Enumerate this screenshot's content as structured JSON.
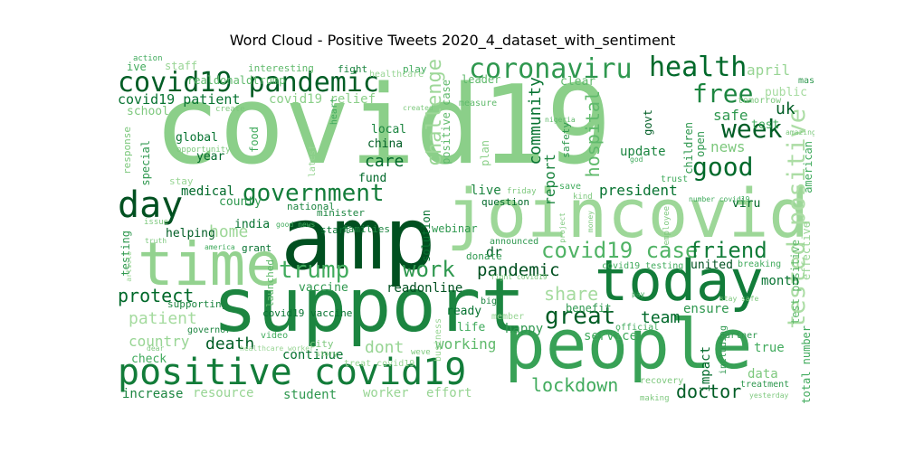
{
  "chart_data": {
    "type": "wordcloud",
    "title": "Word Cloud - Positive Tweets 2020_4_dataset_with_sentiment",
    "colormap": "Greens",
    "words": [
      {
        "text": "covid19",
        "weight": 1.0,
        "shade": 0.25
      },
      {
        "text": "amp",
        "weight": 0.62,
        "shade": 0.95
      },
      {
        "text": "joincovid",
        "weight": 0.52,
        "shade": 0.18
      },
      {
        "text": "support",
        "weight": 0.55,
        "shade": 0.7
      },
      {
        "text": "people",
        "weight": 0.5,
        "shade": 0.55
      },
      {
        "text": "time",
        "weight": 0.42,
        "shade": 0.22
      },
      {
        "text": "today",
        "weight": 0.48,
        "shade": 0.75
      },
      {
        "text": "positive covid19",
        "weight": 0.28,
        "shade": 0.75
      },
      {
        "text": "coronaviru",
        "weight": 0.2,
        "shade": 0.6
      },
      {
        "text": "health",
        "weight": 0.2,
        "shade": 0.85
      },
      {
        "text": "covid19 pandemic",
        "weight": 0.21,
        "shade": 0.9
      },
      {
        "text": "day",
        "weight": 0.28,
        "shade": 0.95
      },
      {
        "text": "government",
        "weight": 0.2,
        "shade": 0.75
      },
      {
        "text": "tested positive",
        "weight": 0.2,
        "shade": 0.12
      },
      {
        "text": "good",
        "weight": 0.18,
        "shade": 0.85
      },
      {
        "text": "week",
        "weight": 0.17,
        "shade": 0.9
      },
      {
        "text": "free",
        "weight": 0.17,
        "shade": 0.7
      },
      {
        "text": "trump",
        "weight": 0.16,
        "shade": 0.5
      },
      {
        "text": "work",
        "weight": 0.15,
        "shade": 0.6
      },
      {
        "text": "great",
        "weight": 0.16,
        "shade": 0.9
      },
      {
        "text": "covid19 case",
        "weight": 0.14,
        "shade": 0.45
      },
      {
        "text": "friend",
        "weight": 0.14,
        "shade": 0.75
      },
      {
        "text": "pandemic",
        "weight": 0.13,
        "shade": 0.95
      },
      {
        "text": "protect",
        "weight": 0.12,
        "shade": 0.85
      },
      {
        "text": "lockdown",
        "weight": 0.12,
        "shade": 0.5
      },
      {
        "text": "doctor",
        "weight": 0.12,
        "shade": 0.9
      },
      {
        "text": "challenge",
        "weight": 0.12,
        "shade": 0.18
      },
      {
        "text": "hospital",
        "weight": 0.12,
        "shade": 0.4
      },
      {
        "text": "community",
        "weight": 0.1,
        "shade": 0.8
      },
      {
        "text": "care",
        "weight": 0.1,
        "shade": 0.85
      },
      {
        "text": "death",
        "weight": 0.11,
        "shade": 0.9
      },
      {
        "text": "share",
        "weight": 0.12,
        "shade": 0.15
      },
      {
        "text": "home",
        "weight": 0.11,
        "shade": 0.18
      },
      {
        "text": "patient",
        "weight": 0.1,
        "shade": 0.15
      },
      {
        "text": "dont",
        "weight": 0.1,
        "shade": 0.2
      },
      {
        "text": "country",
        "weight": 0.09,
        "shade": 0.2
      },
      {
        "text": "team",
        "weight": 0.1,
        "shade": 0.85
      },
      {
        "text": "president",
        "weight": 0.09,
        "shade": 0.8
      },
      {
        "text": "working",
        "weight": 0.08,
        "shade": 0.4
      },
      {
        "text": "continue",
        "weight": 0.08,
        "shade": 0.8
      },
      {
        "text": "news",
        "weight": 0.08,
        "shade": 0.3
      },
      {
        "text": "safe",
        "weight": 0.08,
        "shade": 0.6
      },
      {
        "text": "uk",
        "weight": 0.08,
        "shade": 0.9
      },
      {
        "text": "april",
        "weight": 0.08,
        "shade": 0.2
      },
      {
        "text": "increase",
        "weight": 0.07,
        "shade": 0.7
      },
      {
        "text": "student",
        "weight": 0.07,
        "shade": 0.6
      },
      {
        "text": "resource",
        "weight": 0.07,
        "shade": 0.2
      },
      {
        "text": "worker",
        "weight": 0.07,
        "shade": 0.2
      },
      {
        "text": "effort",
        "weight": 0.07,
        "shade": 0.2
      },
      {
        "text": "vaccine",
        "weight": 0.06,
        "shade": 0.6
      },
      {
        "text": "readonline",
        "weight": 0.06,
        "shade": 0.95
      },
      {
        "text": "live",
        "weight": 0.07,
        "shade": 0.7
      },
      {
        "text": "report",
        "weight": 0.07,
        "shade": 0.7
      },
      {
        "text": "update",
        "weight": 0.06,
        "shade": 0.7
      },
      {
        "text": "medical",
        "weight": 0.06,
        "shade": 0.85
      },
      {
        "text": "covid19 patient",
        "weight": 0.07,
        "shade": 0.8
      },
      {
        "text": "covid19 relief",
        "weight": 0.07,
        "shade": 0.25
      },
      {
        "text": "realdonaldtrump",
        "weight": 0.06,
        "shade": 0.4
      },
      {
        "text": "total number",
        "weight": 0.05,
        "shade": 0.5
      },
      {
        "text": "test positive",
        "weight": 0.05,
        "shade": 0.4
      },
      {
        "text": "american",
        "weight": 0.05,
        "shade": 0.5
      },
      {
        "text": "effective",
        "weight": 0.05,
        "shade": 0.2
      },
      {
        "text": "ensure",
        "weight": 0.06,
        "shade": 0.6
      },
      {
        "text": "month",
        "weight": 0.06,
        "shade": 0.8
      },
      {
        "text": "benefit",
        "weight": 0.06,
        "shade": 0.6
      },
      {
        "text": "happy",
        "weight": 0.06,
        "shade": 0.6
      },
      {
        "text": "ready",
        "weight": 0.05,
        "shade": 0.8
      },
      {
        "text": "life",
        "weight": 0.06,
        "shade": 0.5
      },
      {
        "text": "service",
        "weight": 0.06,
        "shade": 0.5
      },
      {
        "text": "impact",
        "weight": 0.06,
        "shade": 0.85
      },
      {
        "text": "true",
        "weight": 0.05,
        "shade": 0.5
      },
      {
        "text": "data",
        "weight": 0.05,
        "shade": 0.3
      },
      {
        "text": "united",
        "weight": 0.05,
        "shade": 0.95
      },
      {
        "text": "global",
        "weight": 0.05,
        "shade": 0.8
      },
      {
        "text": "year",
        "weight": 0.05,
        "shade": 0.85
      },
      {
        "text": "china",
        "weight": 0.05,
        "shade": 0.9
      },
      {
        "text": "local",
        "weight": 0.05,
        "shade": 0.7
      },
      {
        "text": "fund",
        "weight": 0.05,
        "shade": 0.85
      },
      {
        "text": "county",
        "weight": 0.05,
        "shade": 0.6
      },
      {
        "text": "india",
        "weight": 0.05,
        "shade": 0.8
      },
      {
        "text": "helping",
        "weight": 0.05,
        "shade": 0.9
      },
      {
        "text": "testing",
        "weight": 0.05,
        "shade": 0.6
      },
      {
        "text": "school",
        "weight": 0.04,
        "shade": 0.3
      },
      {
        "text": "special",
        "weight": 0.04,
        "shade": 0.6
      },
      {
        "text": "response",
        "weight": 0.04,
        "shade": 0.3
      },
      {
        "text": "food",
        "weight": 0.04,
        "shade": 0.5
      },
      {
        "text": "dr",
        "weight": 0.05,
        "shade": 0.9
      },
      {
        "text": "solution",
        "weight": 0.04,
        "shade": 0.8
      },
      {
        "text": "webinar",
        "weight": 0.04,
        "shade": 0.6
      },
      {
        "text": "positive case",
        "weight": 0.04,
        "shade": 0.4
      },
      {
        "text": "leader",
        "weight": 0.04,
        "shade": 0.4
      },
      {
        "text": "measure",
        "weight": 0.04,
        "shade": 0.4
      },
      {
        "text": "plan",
        "weight": 0.04,
        "shade": 0.25
      },
      {
        "text": "clear",
        "weight": 0.04,
        "shade": 0.4
      },
      {
        "text": "open",
        "weight": 0.04,
        "shade": 0.6
      },
      {
        "text": "children",
        "weight": 0.04,
        "shade": 0.6
      },
      {
        "text": "govt",
        "weight": 0.04,
        "shade": 0.9
      },
      {
        "text": "viru",
        "weight": 0.04,
        "shade": 0.85
      },
      {
        "text": "public",
        "weight": 0.04,
        "shade": 0.15
      },
      {
        "text": "test",
        "weight": 0.04,
        "shade": 0.5
      },
      {
        "text": "tomorrow",
        "weight": 0.03,
        "shade": 0.3
      },
      {
        "text": "mask",
        "weight": 0.03,
        "shade": 0.6
      },
      {
        "text": "partner",
        "weight": 0.03,
        "shade": 0.6
      },
      {
        "text": "treatment",
        "weight": 0.03,
        "shade": 0.6
      },
      {
        "text": "recovery",
        "weight": 0.03,
        "shade": 0.3
      },
      {
        "text": "including",
        "weight": 0.03,
        "shade": 0.6
      },
      {
        "text": "official",
        "weight": 0.03,
        "shade": 0.5
      },
      {
        "text": "breaking",
        "weight": 0.03,
        "shade": 0.5
      },
      {
        "text": "grant",
        "weight": 0.03,
        "shade": 0.8
      },
      {
        "text": "launched",
        "weight": 0.03,
        "shade": 0.4
      },
      {
        "text": "national",
        "weight": 0.03,
        "shade": 0.7
      },
      {
        "text": "start",
        "weight": 0.03,
        "shade": 0.8
      },
      {
        "text": "families",
        "weight": 0.03,
        "shade": 0.7
      },
      {
        "text": "minister",
        "weight": 0.03,
        "shade": 0.7
      },
      {
        "text": "question",
        "weight": 0.03,
        "shade": 0.85
      },
      {
        "text": "announced",
        "weight": 0.03,
        "shade": 0.6
      },
      {
        "text": "donate",
        "weight": 0.03,
        "shade": 0.6
      },
      {
        "text": "covid19 vaccine",
        "weight": 0.03,
        "shade": 0.8
      },
      {
        "text": "covid19 testing",
        "weight": 0.03,
        "shade": 0.5
      },
      {
        "text": "supporting",
        "weight": 0.03,
        "shade": 0.7
      },
      {
        "text": "governor",
        "weight": 0.03,
        "shade": 0.7
      },
      {
        "text": "member",
        "weight": 0.03,
        "shade": 0.2
      },
      {
        "text": "business",
        "weight": 0.03,
        "shade": 0.2
      },
      {
        "text": "big",
        "weight": 0.03,
        "shade": 0.7
      },
      {
        "text": "video",
        "weight": 0.03,
        "shade": 0.5
      },
      {
        "text": "city",
        "weight": 0.03,
        "shade": 0.3
      },
      {
        "text": "check",
        "weight": 0.04,
        "shade": 0.5
      },
      {
        "text": "interesting",
        "weight": 0.03,
        "shade": 0.4
      },
      {
        "text": "fight",
        "weight": 0.03,
        "shade": 0.7
      },
      {
        "text": "play",
        "weight": 0.03,
        "shade": 0.5
      },
      {
        "text": "healthcare",
        "weight": 0.03,
        "shade": 0.2
      },
      {
        "text": "heart",
        "weight": 0.03,
        "shade": 0.5
      },
      {
        "text": "create",
        "weight": 0.02,
        "shade": 0.3
      },
      {
        "text": "opportunity",
        "weight": 0.02,
        "shade": 0.3
      },
      {
        "text": "latest",
        "weight": 0.03,
        "shade": 0.2
      },
      {
        "text": "stay",
        "weight": 0.03,
        "shade": 0.2
      },
      {
        "text": "trust",
        "weight": 0.03,
        "shade": 0.5
      },
      {
        "text": "save",
        "weight": 0.02,
        "shade": 0.5
      },
      {
        "text": "kind",
        "weight": 0.02,
        "shade": 0.3
      },
      {
        "text": "friday",
        "weight": 0.02,
        "shade": 0.3
      },
      {
        "text": "safety",
        "weight": 0.03,
        "shade": 0.6
      },
      {
        "text": "nigeria",
        "weight": 0.02,
        "shade": 0.4
      },
      {
        "text": "god",
        "weight": 0.02,
        "shade": 0.5
      },
      {
        "text": "employee",
        "weight": 0.02,
        "shade": 0.3
      },
      {
        "text": "pay",
        "weight": 0.02,
        "shade": 0.5
      },
      {
        "text": "issue",
        "weight": 0.02,
        "shade": 0.3
      },
      {
        "text": "truth",
        "weight": 0.02,
        "shade": 0.3
      },
      {
        "text": "america",
        "weight": 0.02,
        "shade": 0.5
      },
      {
        "text": "good news",
        "weight": 0.02,
        "shade": 0.5
      },
      {
        "text": "ive",
        "weight": 0.03,
        "shade": 0.5
      },
      {
        "text": "action",
        "weight": 0.02,
        "shade": 0.5
      },
      {
        "text": "staff",
        "weight": 0.03,
        "shade": 0.2
      },
      {
        "text": "project",
        "weight": 0.02,
        "shade": 0.3
      },
      {
        "text": "number covid19",
        "weight": 0.02,
        "shade": 0.5
      },
      {
        "text": "stay safe",
        "weight": 0.02,
        "shade": 0.3
      },
      {
        "text": "yesterday",
        "weight": 0.02,
        "shade": 0.3
      },
      {
        "text": "making",
        "weight": 0.02,
        "shade": 0.3
      },
      {
        "text": "dear",
        "weight": 0.02,
        "shade": 0.3
      },
      {
        "text": "story",
        "weight": 0.02,
        "shade": 0.3
      },
      {
        "text": "healthcare worker",
        "weight": 0.02,
        "shade": 0.2
      },
      {
        "text": "article",
        "weight": 0.02,
        "shade": 0.2
      },
      {
        "text": "treat covid19",
        "weight": 0.02,
        "shade": 0.2
      },
      {
        "text": "amazing",
        "weight": 0.02,
        "shade": 0.3
      },
      {
        "text": "created",
        "weight": 0.02,
        "shade": 0.3
      },
      {
        "text": "money",
        "weight": 0.02,
        "shade": 0.3
      },
      {
        "text": "fight covid19",
        "weight": 0.02,
        "shade": 0.3
      },
      {
        "text": "weve",
        "weight": 0.02,
        "shade": 0.3
      }
    ]
  }
}
